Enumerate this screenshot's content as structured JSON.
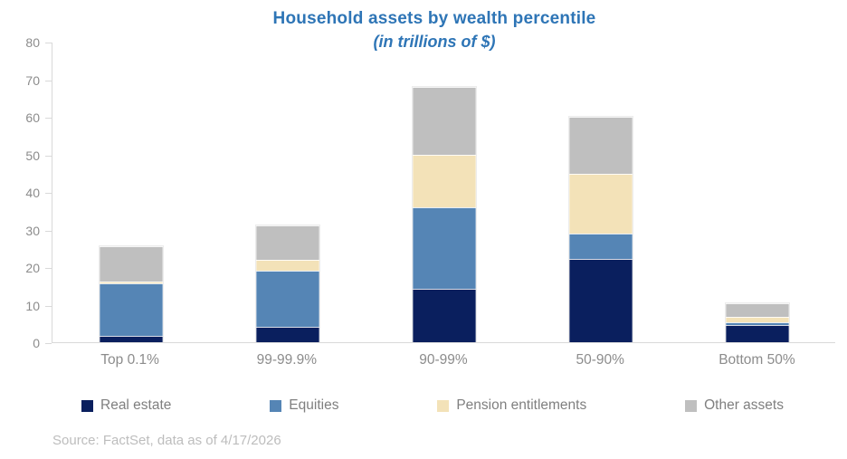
{
  "chart": {
    "title": "Household assets by wealth percentile",
    "subtitle": "(in trillions of $)",
    "source": "Source: FactSet, data as of 4/17/2026"
  },
  "chart_data": {
    "type": "bar",
    "stacked": true,
    "title": "Household assets by wealth percentile",
    "subtitle": "(in trillions of $)",
    "categories": [
      "Top 0.1%",
      "99-99.9%",
      "90-99%",
      "50-90%",
      "Bottom 50%"
    ],
    "series": [
      {
        "name": "Real estate",
        "color": "#0A1F5E",
        "values": [
          1.8,
          4.2,
          14.3,
          22.2,
          4.5
        ]
      },
      {
        "name": "Equities",
        "color": "#5585B5",
        "values": [
          13.8,
          14.9,
          21.7,
          6.7,
          0.8
        ]
      },
      {
        "name": "Pension entitlements",
        "color": "#F3E2B8",
        "values": [
          0.6,
          2.8,
          14.0,
          16.0,
          1.4
        ]
      },
      {
        "name": "Other assets",
        "color": "#BFBFBF",
        "values": [
          9.3,
          9.2,
          18.0,
          15.2,
          3.7
        ]
      }
    ],
    "totals": [
      25.5,
      31.1,
      68.0,
      60.1,
      10.4
    ],
    "ylim": [
      0,
      80
    ],
    "yticks": [
      0,
      10,
      20,
      30,
      40,
      50,
      60,
      70,
      80
    ],
    "grid": false,
    "legend_position": "bottom",
    "xlabel": "",
    "ylabel": ""
  },
  "colors": {
    "title_text": "#2E75B6",
    "axis_line": "#D9D9D9",
    "tick_label": "#8C8C8C",
    "x_label": "#8C8C8C",
    "legend_label": "#7F7F7F",
    "source_text": "#BDBDBD"
  }
}
